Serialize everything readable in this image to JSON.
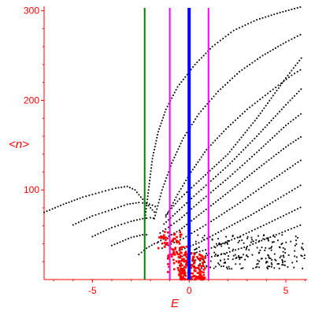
{
  "chart_data": {
    "type": "scatter",
    "title": "",
    "xlabel": "E",
    "ylabel": "<n>",
    "xlim": [
      -7.5,
      6.1
    ],
    "ylim": [
      0,
      305
    ],
    "xticks": [
      -5,
      0,
      5
    ],
    "yticks": [
      100,
      200,
      300
    ],
    "xtick_labels": [
      "-5",
      "0",
      "5"
    ],
    "ytick_labels": [
      "100",
      "200",
      "300"
    ],
    "grid": false,
    "colors": {
      "axis": "#ff0000",
      "black_points": "#000000",
      "red_points": "#ff0000",
      "line_green": "#008000",
      "line_blue": "#0000ff",
      "line_magenta": "#ff00ff"
    },
    "vertical_lines": [
      {
        "x": -2.3,
        "color": "#008000"
      },
      {
        "x": -1.0,
        "color": "#ff00ff"
      },
      {
        "x": 0.0,
        "color": "#0000ff"
      },
      {
        "x": 1.0,
        "color": "#ff00ff"
      }
    ],
    "black_curves": [
      {
        "points": [
          [
            -7.5,
            75
          ],
          [
            -6.5,
            84
          ],
          [
            -5.5,
            92
          ],
          [
            -4.5,
            98
          ],
          [
            -3.8,
            102
          ],
          [
            -3.2,
            104
          ],
          [
            -2.8,
            100
          ],
          [
            -2.5,
            92
          ],
          [
            -2.2,
            85
          ],
          [
            -2.0,
            80
          ],
          [
            -1.7,
            73
          ]
        ]
      },
      {
        "points": [
          [
            -6.0,
            61
          ],
          [
            -5.0,
            71
          ],
          [
            -4.0,
            78
          ],
          [
            -3.2,
            84
          ],
          [
            -2.6,
            86
          ],
          [
            -2.2,
            85
          ],
          [
            -1.9,
            83
          ],
          [
            -1.6,
            80
          ]
        ]
      },
      {
        "points": [
          [
            -5.0,
            48
          ],
          [
            -4.0,
            58
          ],
          [
            -3.0,
            65
          ],
          [
            -2.4,
            68
          ],
          [
            -2.0,
            69
          ],
          [
            -1.7,
            68
          ]
        ]
      },
      {
        "points": [
          [
            -4.0,
            38
          ],
          [
            -3.0,
            47
          ],
          [
            -2.4,
            50
          ],
          [
            -2.0,
            50
          ]
        ]
      },
      {
        "points": [
          [
            -2.6,
            28
          ],
          [
            -2.2,
            35
          ],
          [
            -1.8,
            40
          ],
          [
            -1.5,
            42
          ]
        ]
      },
      {
        "points": [
          [
            -1.2,
            72
          ],
          [
            -0.5,
            90
          ],
          [
            0.5,
            110
          ],
          [
            2.0,
            140
          ],
          [
            3.5,
            180
          ],
          [
            5.0,
            225
          ],
          [
            5.9,
            250
          ]
        ]
      },
      {
        "points": [
          [
            -1.3,
            62
          ],
          [
            -0.5,
            78
          ],
          [
            0.5,
            98
          ],
          [
            2.0,
            127
          ],
          [
            3.5,
            160
          ],
          [
            5.0,
            195
          ],
          [
            5.9,
            215
          ]
        ]
      },
      {
        "points": [
          [
            -1.5,
            52
          ],
          [
            -0.5,
            67
          ],
          [
            0.5,
            86
          ],
          [
            2.0,
            113
          ],
          [
            3.5,
            142
          ],
          [
            5.0,
            172
          ],
          [
            5.9,
            187
          ]
        ]
      },
      {
        "points": [
          [
            -1.6,
            42
          ],
          [
            -0.5,
            55
          ],
          [
            0.5,
            72
          ],
          [
            2.0,
            97
          ],
          [
            3.5,
            123
          ],
          [
            5.0,
            148
          ],
          [
            5.9,
            161
          ]
        ]
      },
      {
        "points": [
          [
            -1.4,
            35
          ],
          [
            -0.3,
            46
          ],
          [
            1.0,
            63
          ],
          [
            2.5,
            84
          ],
          [
            4.0,
            107
          ],
          [
            5.9,
            135
          ]
        ]
      },
      {
        "points": [
          [
            -0.8,
            30
          ],
          [
            0.5,
            41
          ],
          [
            1.8,
            56
          ],
          [
            3.2,
            72
          ],
          [
            4.6,
            90
          ],
          [
            5.9,
            107
          ]
        ]
      },
      {
        "points": [
          [
            -0.5,
            25
          ],
          [
            1.0,
            34
          ],
          [
            2.5,
            47
          ],
          [
            4.0,
            62
          ],
          [
            5.9,
            82
          ]
        ]
      },
      {
        "points": [
          [
            0.0,
            20
          ],
          [
            1.5,
            27
          ],
          [
            3.0,
            37
          ],
          [
            4.5,
            50
          ],
          [
            5.9,
            62
          ]
        ]
      },
      {
        "points": [
          [
            -2.3,
            65
          ],
          [
            -2.1,
            100
          ],
          [
            -1.9,
            135
          ],
          [
            -1.6,
            165
          ],
          [
            -1.2,
            190
          ],
          [
            -0.6,
            215
          ],
          [
            0.3,
            240
          ],
          [
            1.2,
            260
          ],
          [
            2.3,
            278
          ],
          [
            3.5,
            290
          ],
          [
            4.7,
            298
          ],
          [
            5.9,
            305
          ]
        ]
      },
      {
        "points": [
          [
            -1.8,
            68
          ],
          [
            -1.4,
            100
          ],
          [
            -0.9,
            130
          ],
          [
            -0.3,
            158
          ],
          [
            0.5,
            185
          ],
          [
            1.5,
            210
          ],
          [
            2.6,
            232
          ],
          [
            3.8,
            250
          ],
          [
            5.0,
            265
          ],
          [
            5.9,
            275
          ]
        ]
      },
      {
        "points": [
          [
            -1.2,
            70
          ],
          [
            -0.6,
            95
          ],
          [
            0.1,
            120
          ],
          [
            0.9,
            145
          ],
          [
            1.9,
            168
          ],
          [
            3.0,
            190
          ],
          [
            4.2,
            210
          ],
          [
            5.3,
            228
          ],
          [
            5.9,
            236
          ]
        ]
      }
    ],
    "black_scatter_region": {
      "xlim": [
        0.2,
        6.0
      ],
      "ylim": [
        12,
        50
      ],
      "count": 220
    },
    "red_scatter_region": {
      "xlim": [
        -1.8,
        1.8
      ],
      "ylim": [
        0,
        55
      ],
      "count": 260
    }
  }
}
